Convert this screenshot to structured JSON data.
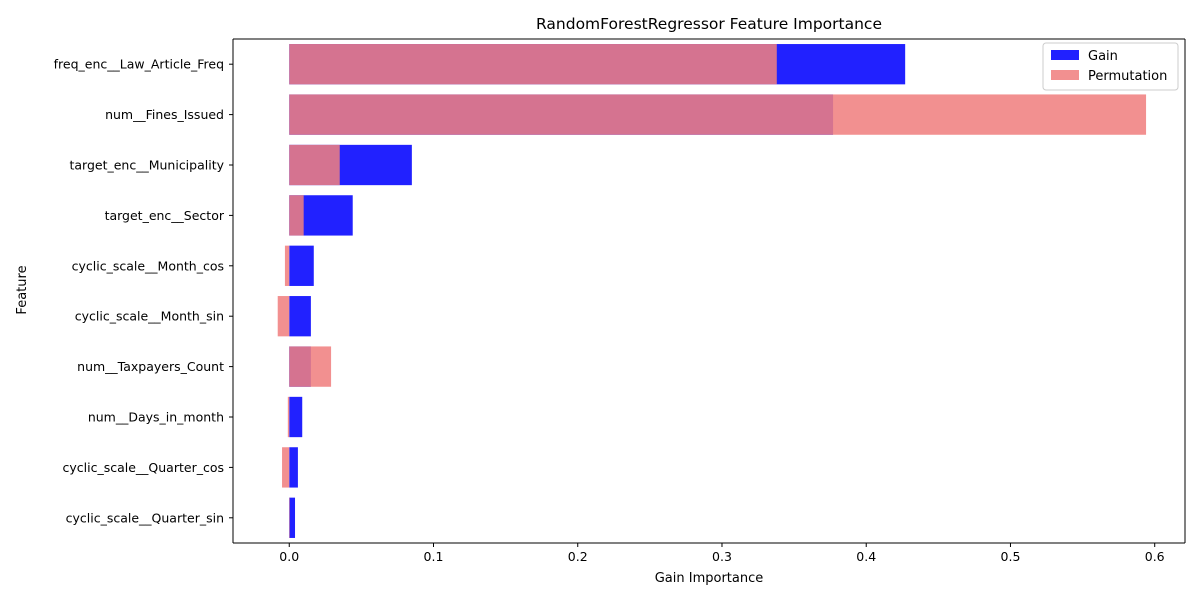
{
  "chart_data": {
    "type": "bar",
    "orientation": "horizontal",
    "title": "RandomForestRegressor Feature Importance",
    "xlabel": "Gain Importance",
    "ylabel": "Feature",
    "xlim": [
      -0.039,
      0.621
    ],
    "xticks": [
      0.0,
      0.1,
      0.2,
      0.3,
      0.4,
      0.5,
      0.6
    ],
    "xtick_labels": [
      "0.0",
      "0.1",
      "0.2",
      "0.3",
      "0.4",
      "0.5",
      "0.6"
    ],
    "grid": false,
    "legend_position": "top-right",
    "categories": [
      "freq_enc__Law_Article_Freq",
      "num__Fines_Issued",
      "target_enc__Municipality",
      "target_enc__Sector",
      "cyclic_scale__Month_cos",
      "cyclic_scale__Month_sin",
      "num__Taxpayers_Count",
      "num__Days_in_month",
      "cyclic_scale__Quarter_cos",
      "cyclic_scale__Quarter_sin"
    ],
    "series": [
      {
        "name": "Gain",
        "color": "#0000ff",
        "opacity": 0.87,
        "values": [
          0.427,
          0.377,
          0.085,
          0.044,
          0.017,
          0.015,
          0.015,
          0.009,
          0.006,
          0.004
        ]
      },
      {
        "name": "Permutation",
        "color": "#f08080",
        "opacity": 0.87,
        "values": [
          0.338,
          0.594,
          0.035,
          0.01,
          -0.003,
          -0.008,
          0.029,
          -0.001,
          -0.005,
          0.0
        ]
      }
    ]
  }
}
